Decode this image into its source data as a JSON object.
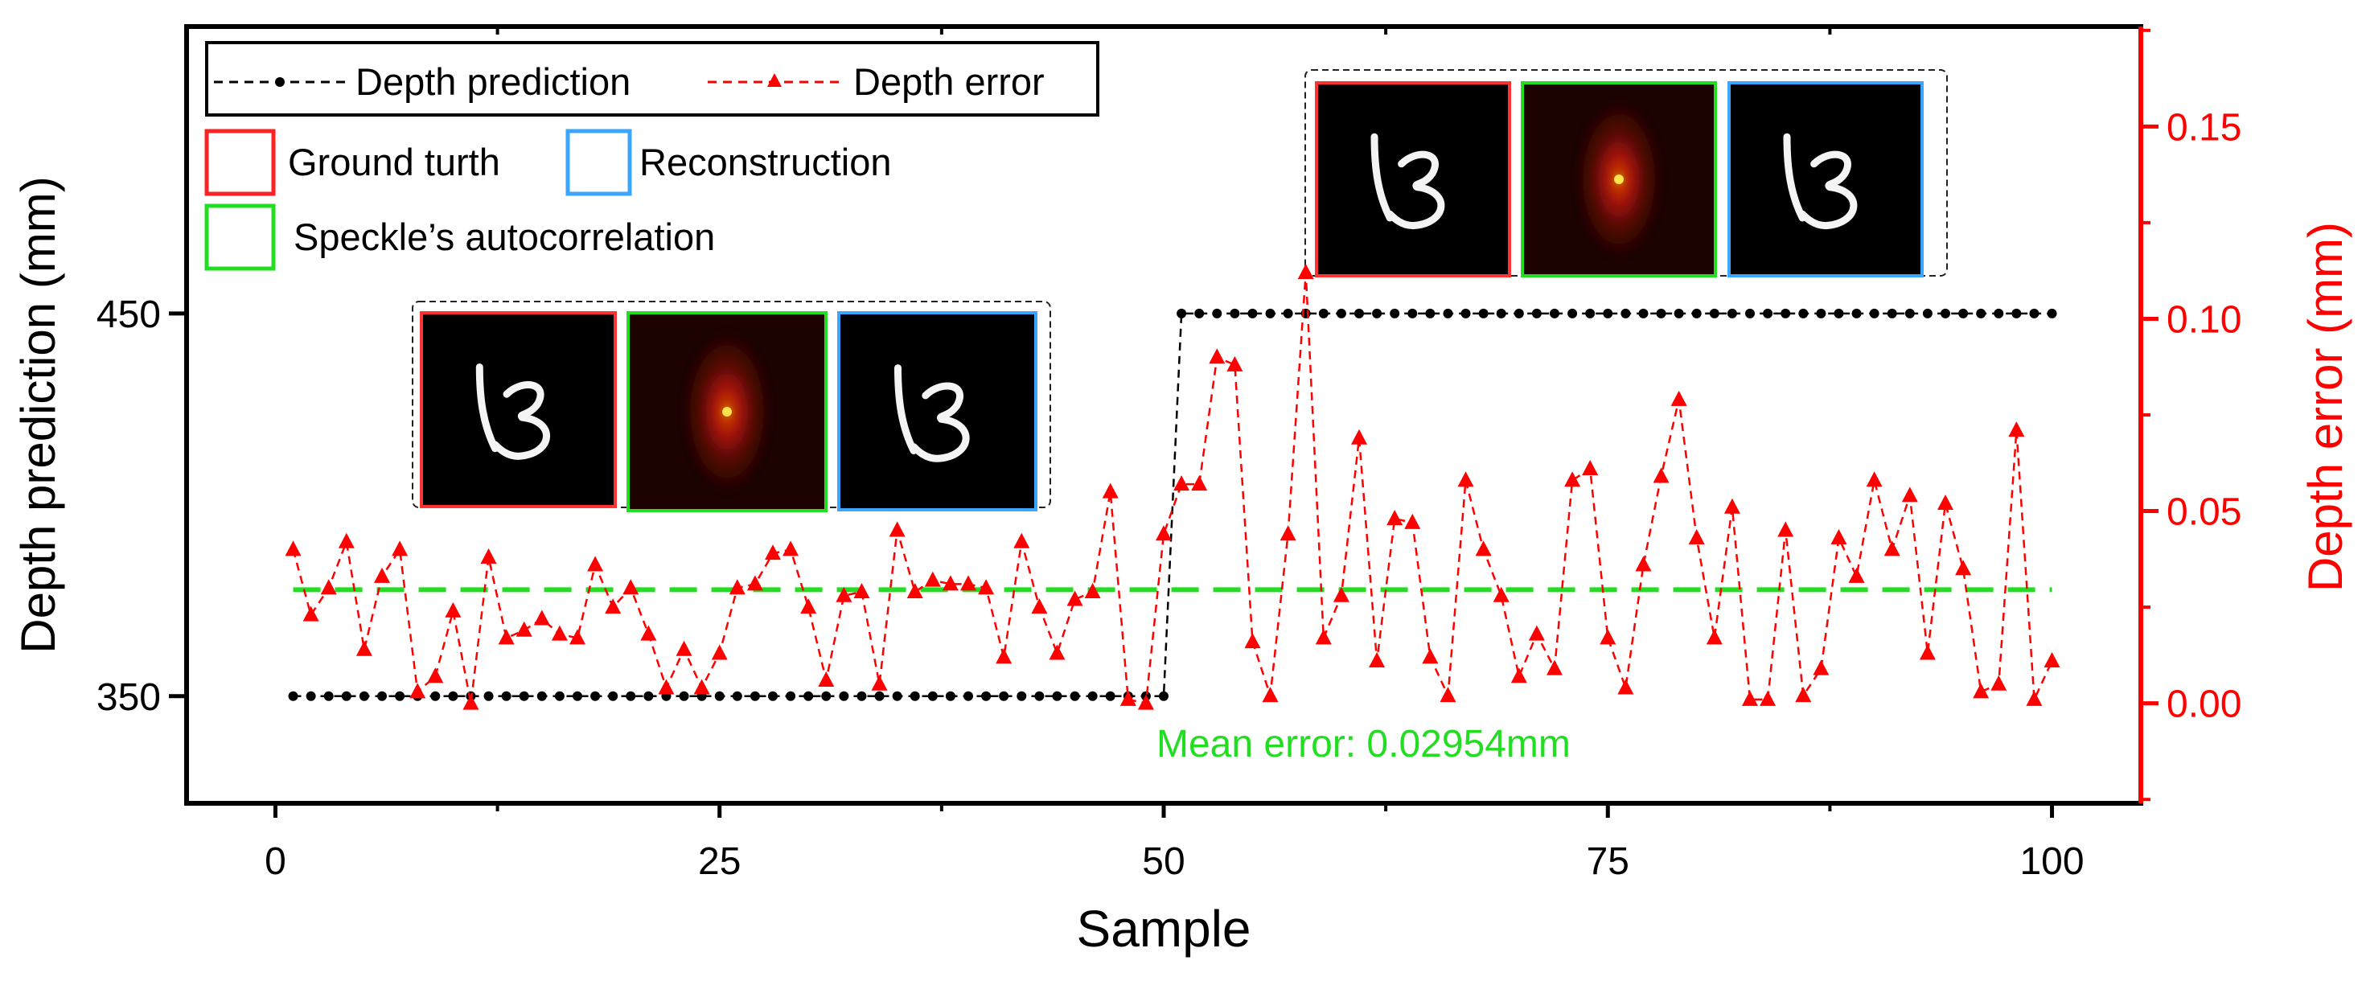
{
  "chart_data": {
    "type": "line",
    "xlabel": "Sample",
    "ylabel_left": "Depth prediction (mm)",
    "ylabel_right": "Depth error (mm)",
    "x_ticks": [
      0,
      25,
      50,
      75,
      100
    ],
    "x_tick_labels": [
      "0",
      "25",
      "50",
      "75",
      "100"
    ],
    "x_range": [
      -5,
      105
    ],
    "y_left_ticks": [
      350,
      450
    ],
    "y_left_tick_labels": [
      "350",
      "450"
    ],
    "y_left_range": [
      322,
      525
    ],
    "y_right_ticks": [
      0.0,
      0.05,
      0.1,
      0.15
    ],
    "y_right_tick_labels": [
      "0.00",
      "0.05",
      "0.10",
      "0.15"
    ],
    "y_right_range": [
      -0.026,
      0.176
    ],
    "grid": false,
    "legend": {
      "position": "top-left",
      "items": [
        "Depth prediction",
        "Depth error"
      ],
      "frame_items": [
        "Ground turth",
        "Reconstruction",
        "Speckle’s autocorrelation"
      ]
    },
    "mean_line": {
      "value": 0.02954,
      "axis": "right",
      "color": "#22dd22"
    },
    "annotation": "Mean error: 0.02954mm",
    "insets": [
      {
        "anchor": "upper-right",
        "panels": [
          "Ground turth",
          "Speckle’s autocorrelation",
          "Reconstruction"
        ]
      },
      {
        "anchor": "middle-left",
        "panels": [
          "Ground turth",
          "Speckle’s autocorrelation",
          "Reconstruction"
        ]
      }
    ],
    "series": [
      {
        "name": "Depth prediction",
        "axis": "left",
        "color": "#000000",
        "x": [
          1,
          2,
          3,
          4,
          5,
          6,
          7,
          8,
          9,
          10,
          11,
          12,
          13,
          14,
          15,
          16,
          17,
          18,
          19,
          20,
          21,
          22,
          23,
          24,
          25,
          26,
          27,
          28,
          29,
          30,
          31,
          32,
          33,
          34,
          35,
          36,
          37,
          38,
          39,
          40,
          41,
          42,
          43,
          44,
          45,
          46,
          47,
          48,
          49,
          50,
          51,
          52,
          53,
          54,
          55,
          56,
          57,
          58,
          59,
          60,
          61,
          62,
          63,
          64,
          65,
          66,
          67,
          68,
          69,
          70,
          71,
          72,
          73,
          74,
          75,
          76,
          77,
          78,
          79,
          80,
          81,
          82,
          83,
          84,
          85,
          86,
          87,
          88,
          89,
          90,
          91,
          92,
          93,
          94,
          95,
          96,
          97,
          98,
          99,
          100
        ],
        "values": [
          350,
          350,
          350,
          350,
          350,
          350,
          350,
          350,
          350,
          350,
          350,
          350,
          350,
          350,
          350,
          350,
          350,
          350,
          350,
          350,
          350,
          350,
          350,
          350,
          350,
          350,
          350,
          350,
          350,
          350,
          350,
          350,
          350,
          350,
          350,
          350,
          350,
          350,
          350,
          350,
          350,
          350,
          350,
          350,
          350,
          350,
          350,
          350,
          350,
          350,
          450,
          450,
          450,
          450,
          450,
          450,
          450,
          450,
          450,
          450,
          450,
          450,
          450,
          450,
          450,
          450,
          450,
          450,
          450,
          450,
          450,
          450,
          450,
          450,
          450,
          450,
          450,
          450,
          450,
          450,
          450,
          450,
          450,
          450,
          450,
          450,
          450,
          450,
          450,
          450,
          450,
          450,
          450,
          450,
          450,
          450,
          450,
          450,
          450,
          450
        ]
      },
      {
        "name": "Depth error",
        "axis": "right",
        "color": "#ff0000",
        "x": [
          1,
          2,
          3,
          4,
          5,
          6,
          7,
          8,
          9,
          10,
          11,
          12,
          13,
          14,
          15,
          16,
          17,
          18,
          19,
          20,
          21,
          22,
          23,
          24,
          25,
          26,
          27,
          28,
          29,
          30,
          31,
          32,
          33,
          34,
          35,
          36,
          37,
          38,
          39,
          40,
          41,
          42,
          43,
          44,
          45,
          46,
          47,
          48,
          49,
          50,
          51,
          52,
          53,
          54,
          55,
          56,
          57,
          58,
          59,
          60,
          61,
          62,
          63,
          64,
          65,
          66,
          67,
          68,
          69,
          70,
          71,
          72,
          73,
          74,
          75,
          76,
          77,
          78,
          79,
          80,
          81,
          82,
          83,
          84,
          85,
          86,
          87,
          88,
          89,
          90,
          91,
          92,
          93,
          94,
          95,
          96,
          97,
          98,
          99,
          100
        ],
        "values": [
          0.04,
          0.023,
          0.03,
          0.042,
          0.014,
          0.033,
          0.04,
          0.003,
          0.007,
          0.024,
          0.0,
          0.038,
          0.017,
          0.019,
          0.022,
          0.018,
          0.017,
          0.036,
          0.025,
          0.03,
          0.018,
          0.004,
          0.014,
          0.004,
          0.013,
          0.03,
          0.031,
          0.039,
          0.04,
          0.025,
          0.006,
          0.028,
          0.029,
          0.005,
          0.045,
          0.029,
          0.032,
          0.031,
          0.031,
          0.03,
          0.012,
          0.042,
          0.025,
          0.013,
          0.027,
          0.029,
          0.055,
          0.001,
          0.0,
          0.044,
          0.057,
          0.057,
          0.09,
          0.088,
          0.016,
          0.002,
          0.044,
          0.112,
          0.017,
          0.028,
          0.069,
          0.011,
          0.048,
          0.047,
          0.012,
          0.002,
          0.058,
          0.04,
          0.028,
          0.007,
          0.018,
          0.009,
          0.058,
          0.061,
          0.017,
          0.004,
          0.036,
          0.059,
          0.079,
          0.043,
          0.017,
          0.051,
          0.001,
          0.001,
          0.045,
          0.002,
          0.009,
          0.043,
          0.033,
          0.058,
          0.04,
          0.054,
          0.013,
          0.052,
          0.035,
          0.003,
          0.005,
          0.071,
          0.001,
          0.011
        ]
      }
    ]
  }
}
